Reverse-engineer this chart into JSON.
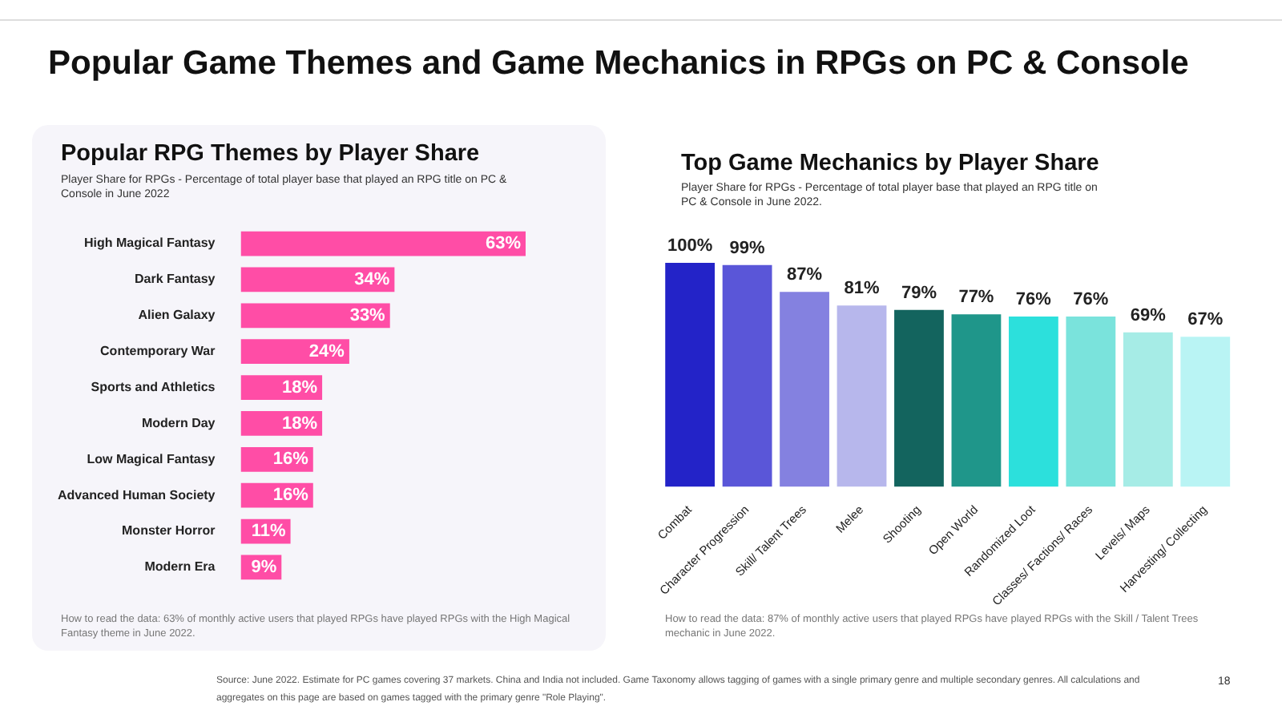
{
  "chart_data": [
    {
      "type": "bar",
      "orientation": "horizontal",
      "title": "Popular RPG Themes by Player Share",
      "subtitle": "Player Share for RPGs - Percentage of total player base that played an RPG title on PC & Console in June 2022",
      "categories": [
        "High Magical Fantasy",
        "Dark Fantasy",
        "Alien Galaxy",
        "Contemporary War",
        "Sports and Athletics",
        "Modern Day",
        "Low Magical Fantasy",
        "Advanced Human Society",
        "Monster Horror",
        "Modern Era"
      ],
      "values": [
        63,
        34,
        33,
        24,
        18,
        18,
        16,
        16,
        11,
        9
      ],
      "value_labels": [
        "63%",
        "34%",
        "33%",
        "24%",
        "18%",
        "18%",
        "16%",
        "16%",
        "11%",
        "9%"
      ],
      "color": "#ff4da6",
      "annotations": [
        "Popular Game Themes and Game Mechanics in RPGs on PC & Console",
        "How to read the data: 63% of monthly active users that played RPGs have played RPGs with the High Magical Fantasy theme in June 2022."
      ]
    },
    {
      "type": "bar",
      "title": "Top Game Mechanics by Player Share",
      "subtitle": "Player Share for RPGs - Percentage of total player base that played an RPG title on PC & Console in June 2022.",
      "categories": [
        "Combat",
        "Character Progression",
        "Skill/ Talent Trees",
        "Melee",
        "Shooting",
        "Open World",
        "Randomized Loot",
        "Classes/ Factions/ Races",
        "Levels/ Maps",
        "Harvesting/ Collecting"
      ],
      "values": [
        100,
        99,
        87,
        81,
        79,
        77,
        76,
        76,
        69,
        67
      ],
      "value_labels": [
        "100%",
        "99%",
        "87%",
        "81%",
        "79%",
        "77%",
        "76%",
        "76%",
        "69%",
        "67%"
      ],
      "colors": [
        "#2323c8",
        "#5a56d8",
        "#8481e0",
        "#b7b7ec",
        "#13645e",
        "#1f968a",
        "#2ce0dc",
        "#7ae3dc",
        "#a6ece6",
        "#b9f4f4"
      ],
      "annotations": [
        "How to read the data: 87% of monthly active users that played RPGs have played RPGs with the Skill / Talent Trees mechanic in June 2022.",
        "Source: June 2022. Estimate for PC games covering 37 markets. China and India not included. Game Taxonomy allows tagging of games with a single primary genre and multiple secondary genres. All calculations and aggregates on this page are based on games tagged with the primary genre \"Role Playing\".",
        "18"
      ]
    }
  ]
}
